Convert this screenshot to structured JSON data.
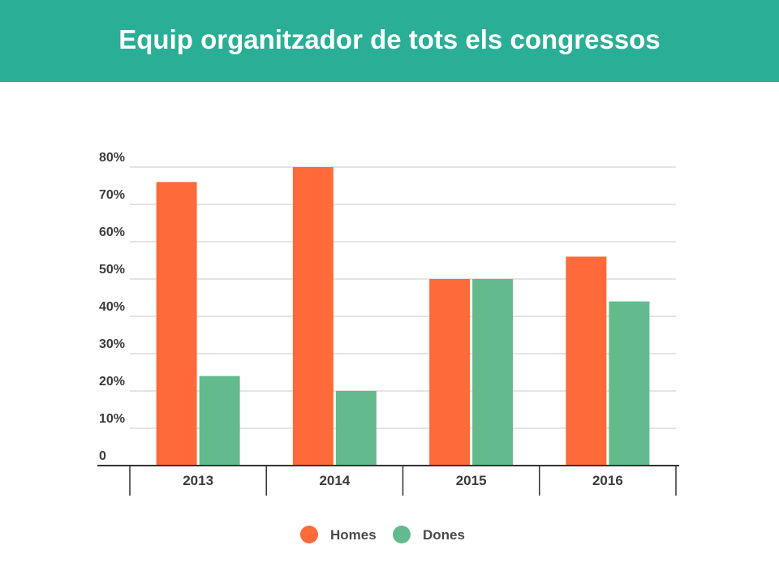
{
  "page": {
    "title": "Equip organitzador de tots els congressos"
  },
  "chart_data": {
    "type": "bar",
    "categories": [
      "2013",
      "2014",
      "2015",
      "2016"
    ],
    "series": [
      {
        "name": "Homes",
        "values": [
          76,
          80,
          50,
          56
        ],
        "color": "#ff6a3a"
      },
      {
        "name": "Dones",
        "values": [
          24,
          20,
          50,
          44
        ],
        "color": "#63bb8d"
      }
    ],
    "ylim": [
      0,
      80
    ],
    "yticks": [
      0,
      10,
      20,
      30,
      40,
      50,
      60,
      70,
      80
    ],
    "ytick_labels": [
      "0",
      "10%",
      "20%",
      "30%",
      "40%",
      "50%",
      "60%",
      "70%",
      "80%"
    ],
    "grid": true,
    "legend_position": "bottom-center",
    "title": "",
    "xlabel": "",
    "ylabel": ""
  }
}
